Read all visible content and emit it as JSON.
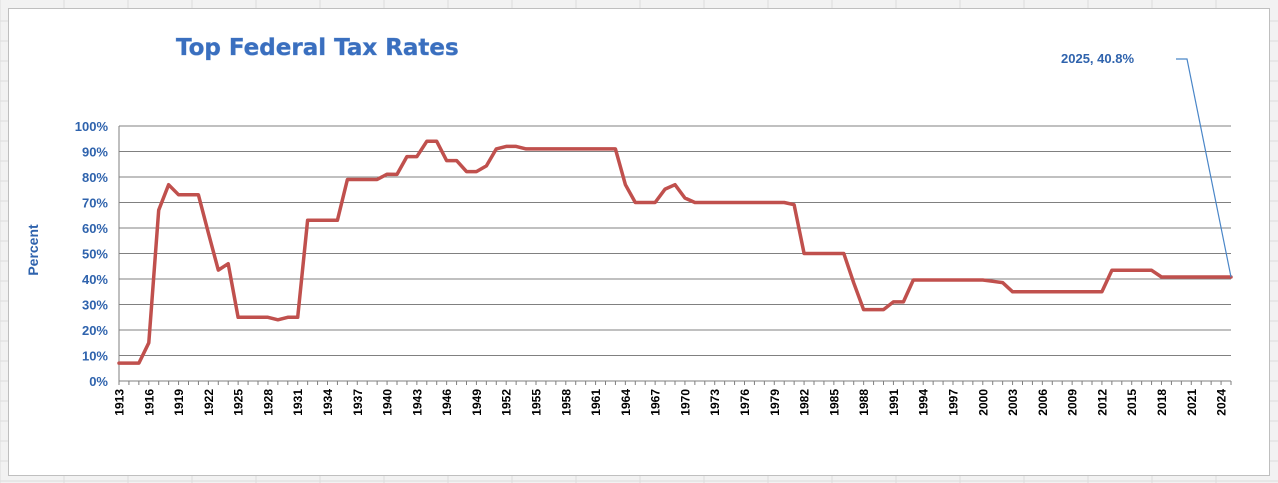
{
  "chart_data": {
    "type": "line",
    "title": "Top Federal Tax Rates",
    "ylabel": "Percent",
    "xlabel": "",
    "xlim": [
      1913,
      2025
    ],
    "ylim": [
      0,
      100
    ],
    "y_ticks": [
      "0%",
      "10%",
      "20%",
      "30%",
      "40%",
      "50%",
      "60%",
      "70%",
      "80%",
      "90%",
      "100%"
    ],
    "x_ticks": [
      "1913",
      "1916",
      "1919",
      "1922",
      "1925",
      "1928",
      "1931",
      "1934",
      "1937",
      "1940",
      "1943",
      "1946",
      "1949",
      "1952",
      "1955",
      "1958",
      "1961",
      "1964",
      "1967",
      "1970",
      "1973",
      "1976",
      "1979",
      "1982",
      "1985",
      "1988",
      "1991",
      "1994",
      "1997",
      "2000",
      "2003",
      "2006",
      "2009",
      "2012",
      "2015",
      "2018",
      "2021",
      "2024"
    ],
    "grid": "horizontal",
    "line_color": "#c0504d",
    "series": [
      {
        "values": [
          [
            1913,
            7
          ],
          [
            1914,
            7
          ],
          [
            1915,
            7
          ],
          [
            1916,
            15
          ],
          [
            1917,
            67
          ],
          [
            1918,
            77
          ],
          [
            1919,
            73
          ],
          [
            1920,
            73
          ],
          [
            1921,
            73
          ],
          [
            1922,
            58
          ],
          [
            1923,
            43.5
          ],
          [
            1924,
            46
          ],
          [
            1925,
            25
          ],
          [
            1926,
            25
          ],
          [
            1927,
            25
          ],
          [
            1928,
            25
          ],
          [
            1929,
            24
          ],
          [
            1930,
            25
          ],
          [
            1931,
            25
          ],
          [
            1932,
            63
          ],
          [
            1933,
            63
          ],
          [
            1934,
            63
          ],
          [
            1935,
            63
          ],
          [
            1936,
            79
          ],
          [
            1937,
            79
          ],
          [
            1938,
            79
          ],
          [
            1939,
            79
          ],
          [
            1940,
            81.1
          ],
          [
            1941,
            81
          ],
          [
            1942,
            88
          ],
          [
            1943,
            88
          ],
          [
            1944,
            94
          ],
          [
            1945,
            94
          ],
          [
            1946,
            86.45
          ],
          [
            1947,
            86.45
          ],
          [
            1948,
            82.13
          ],
          [
            1949,
            82.13
          ],
          [
            1950,
            84.36
          ],
          [
            1951,
            91
          ],
          [
            1952,
            92
          ],
          [
            1953,
            92
          ],
          [
            1954,
            91
          ],
          [
            1955,
            91
          ],
          [
            1956,
            91
          ],
          [
            1957,
            91
          ],
          [
            1958,
            91
          ],
          [
            1959,
            91
          ],
          [
            1960,
            91
          ],
          [
            1961,
            91
          ],
          [
            1962,
            91
          ],
          [
            1963,
            91
          ],
          [
            1964,
            77
          ],
          [
            1965,
            70
          ],
          [
            1966,
            70
          ],
          [
            1967,
            70
          ],
          [
            1968,
            75.25
          ],
          [
            1969,
            77
          ],
          [
            1970,
            71.75
          ],
          [
            1971,
            70
          ],
          [
            1972,
            70
          ],
          [
            1973,
            70
          ],
          [
            1974,
            70
          ],
          [
            1975,
            70
          ],
          [
            1976,
            70
          ],
          [
            1977,
            70
          ],
          [
            1978,
            70
          ],
          [
            1979,
            70
          ],
          [
            1980,
            70
          ],
          [
            1981,
            69.13
          ],
          [
            1982,
            50
          ],
          [
            1983,
            50
          ],
          [
            1984,
            50
          ],
          [
            1985,
            50
          ],
          [
            1986,
            50
          ],
          [
            1987,
            38.5
          ],
          [
            1988,
            28
          ],
          [
            1989,
            28
          ],
          [
            1990,
            28
          ],
          [
            1991,
            31
          ],
          [
            1992,
            31
          ],
          [
            1993,
            39.6
          ],
          [
            1994,
            39.6
          ],
          [
            1995,
            39.6
          ],
          [
            1996,
            39.6
          ],
          [
            1997,
            39.6
          ],
          [
            1998,
            39.6
          ],
          [
            1999,
            39.6
          ],
          [
            2000,
            39.6
          ],
          [
            2001,
            39.1
          ],
          [
            2002,
            38.6
          ],
          [
            2003,
            35
          ],
          [
            2004,
            35
          ],
          [
            2005,
            35
          ],
          [
            2006,
            35
          ],
          [
            2007,
            35
          ],
          [
            2008,
            35
          ],
          [
            2009,
            35
          ],
          [
            2010,
            35
          ],
          [
            2011,
            35
          ],
          [
            2012,
            35
          ],
          [
            2013,
            43.4
          ],
          [
            2014,
            43.4
          ],
          [
            2015,
            43.4
          ],
          [
            2016,
            43.4
          ],
          [
            2017,
            43.4
          ],
          [
            2018,
            40.8
          ],
          [
            2019,
            40.8
          ],
          [
            2020,
            40.8
          ],
          [
            2021,
            40.8
          ],
          [
            2022,
            40.8
          ],
          [
            2023,
            40.8
          ],
          [
            2024,
            40.8
          ],
          [
            2025,
            40.8
          ]
        ]
      }
    ],
    "annotation": {
      "text": "2025, 40.8%",
      "x": 2025,
      "y": 40.8
    }
  }
}
